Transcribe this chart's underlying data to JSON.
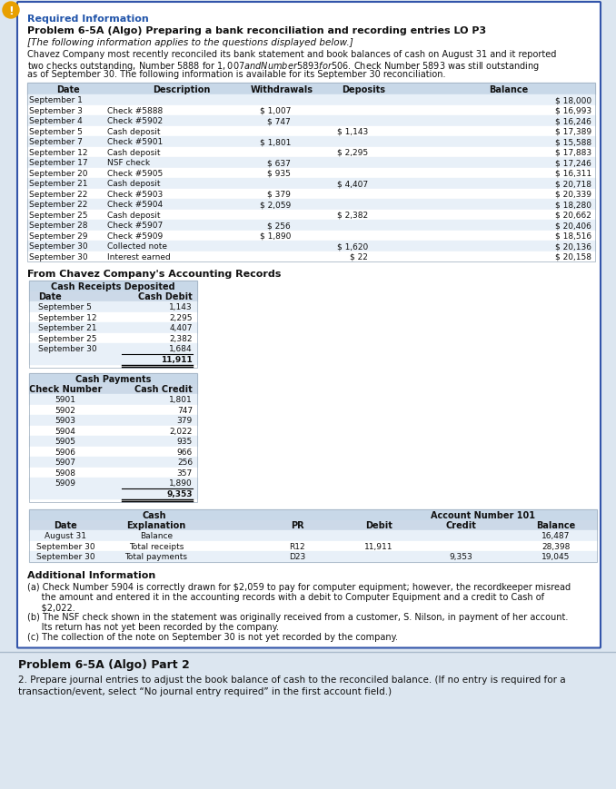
{
  "bg_color": "#dce6f0",
  "border_color": "#3355aa",
  "warn_icon_color": "#e8a000",
  "table_header_bg": "#c8d8e8",
  "table_header_bg2": "#ccd9e8",
  "table_row_alt": "#e8f0f8",
  "title_required": "Required Information",
  "title_problem": "Problem 6-5A (Algo) Preparing a bank reconciliation and recording entries LO P3",
  "subtitle": "[The following information applies to the questions displayed below.]",
  "intro_lines": [
    "Chavez Company most recently reconciled its bank statement and book balances of cash on August 31 and it reported",
    "two checks outstanding, Number 5888 for $1,007 and Number 5893 for $506. Check Number 5893 was still outstanding",
    "as of September 30. The following information is available for its September 30 reconciliation."
  ],
  "bank_table_headers": [
    "Date",
    "Description",
    "Withdrawals",
    "Deposits",
    "Balance"
  ],
  "bank_table_rows": [
    [
      "September 1",
      "",
      "",
      "",
      "$ 18,000"
    ],
    [
      "September 3",
      "Check #5888",
      "$ 1,007",
      "",
      "$ 16,993"
    ],
    [
      "September 4",
      "Check #5902",
      "$ 747",
      "",
      "$ 16,246"
    ],
    [
      "September 5",
      "Cash deposit",
      "",
      "$ 1,143",
      "$ 17,389"
    ],
    [
      "September 7",
      "Check #5901",
      "$ 1,801",
      "",
      "$ 15,588"
    ],
    [
      "September 12",
      "Cash deposit",
      "",
      "$ 2,295",
      "$ 17,883"
    ],
    [
      "September 17",
      "NSF check",
      "$ 637",
      "",
      "$ 17,246"
    ],
    [
      "September 20",
      "Check #5905",
      "$ 935",
      "",
      "$ 16,311"
    ],
    [
      "September 21",
      "Cash deposit",
      "",
      "$ 4,407",
      "$ 20,718"
    ],
    [
      "September 22",
      "Check #5903",
      "$ 379",
      "",
      "$ 20,339"
    ],
    [
      "September 22",
      "Check #5904",
      "$ 2,059",
      "",
      "$ 18,280"
    ],
    [
      "September 25",
      "Cash deposit",
      "",
      "$ 2,382",
      "$ 20,662"
    ],
    [
      "September 28",
      "Check #5907",
      "$ 256",
      "",
      "$ 20,406"
    ],
    [
      "September 29",
      "Check #5909",
      "$ 1,890",
      "",
      "$ 18,516"
    ],
    [
      "September 30",
      "Collected note",
      "",
      "$ 1,620",
      "$ 20,136"
    ],
    [
      "September 30",
      "Interest earned",
      "",
      "$ 22",
      "$ 20,158"
    ]
  ],
  "from_chavez_label": "From Chavez Company's Accounting Records",
  "receipts_header1": "Cash Receipts Deposited",
  "receipts_col1": "Date",
  "receipts_col2": "Cash Debit",
  "receipts_rows": [
    [
      "September 5",
      "1,143"
    ],
    [
      "September 12",
      "2,295"
    ],
    [
      "September 21",
      "4,407"
    ],
    [
      "September 25",
      "2,382"
    ],
    [
      "September 30",
      "1,684"
    ]
  ],
  "receipts_total": "11,911",
  "payments_header1": "Cash Payments",
  "payments_col1": "Check Number",
  "payments_col2": "Cash Credit",
  "payments_rows": [
    [
      "5901",
      "1,801"
    ],
    [
      "5902",
      "747"
    ],
    [
      "5903",
      "379"
    ],
    [
      "5904",
      "2,022"
    ],
    [
      "5905",
      "935"
    ],
    [
      "5906",
      "966"
    ],
    [
      "5907",
      "256"
    ],
    [
      "5908",
      "357"
    ],
    [
      "5909",
      "1,890"
    ]
  ],
  "payments_total": "9,353",
  "ledger_header_left": "Cash",
  "ledger_header_right": "Account Number 101",
  "ledger_col_headers": [
    "Date",
    "Explanation",
    "PR",
    "Debit",
    "Credit",
    "Balance"
  ],
  "ledger_rows": [
    [
      "August 31",
      "Balance",
      "",
      "",
      "",
      "16,487"
    ],
    [
      "September 30",
      "Total receipts",
      "R12",
      "11,911",
      "",
      "28,398"
    ],
    [
      "September 30",
      "Total payments",
      "D23",
      "",
      "9,353",
      "19,045"
    ]
  ],
  "additional_info_title": "Additional Information",
  "additional_info_lines": [
    "(a) Check Number 5904 is correctly drawn for $2,059 to pay for computer equipment; however, the recordkeeper misread",
    "     the amount and entered it in the accounting records with a debit to Computer Equipment and a credit to Cash of",
    "     $2,022.",
    "(b) The NSF check shown in the statement was originally received from a customer, S. Nilson, in payment of her account.",
    "     Its return has not yet been recorded by the company.",
    "(c) The collection of the note on September 30 is not yet recorded by the company."
  ],
  "part2_title": "Problem 6-5A (Algo) Part 2",
  "part2_line1": "2. Prepare journal entries to adjust the book balance of cash to the reconciled balance. (If no entry is required for a",
  "part2_line2": "transaction/event, select “No journal entry required” in the first account field.)"
}
